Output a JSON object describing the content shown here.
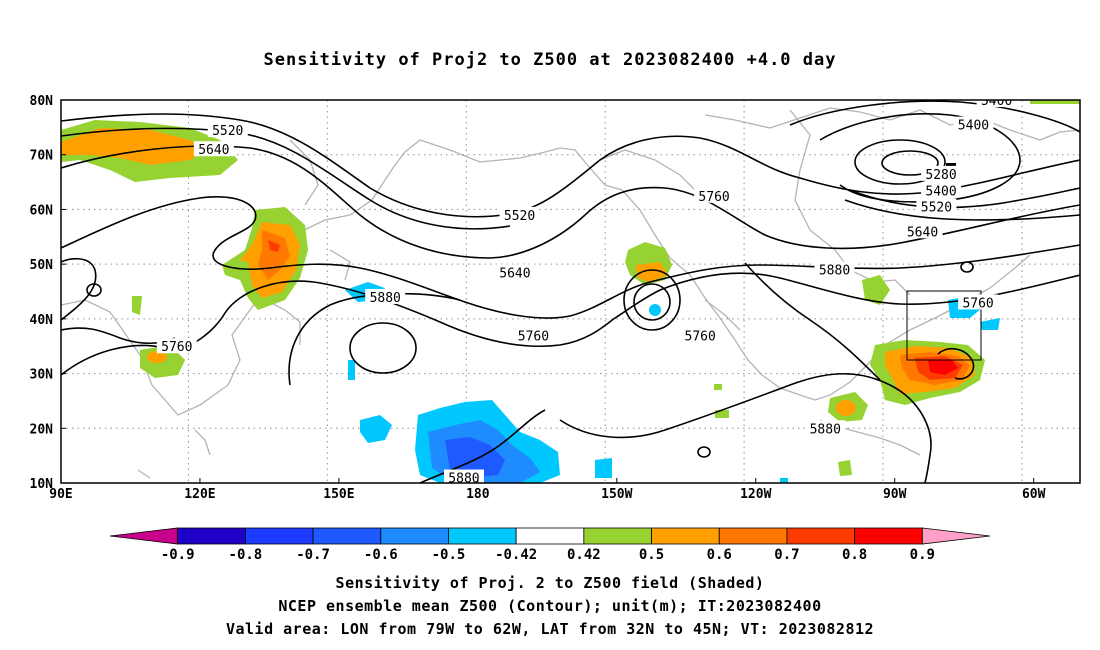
{
  "title": "Sensitivity of Proj2 to Z500 at 2023082400 +4.0 day",
  "footer": {
    "line1": "Sensitivity of Proj. 2 to Z500 field (Shaded)",
    "line2": "NCEP ensemble mean Z500 (Contour); unit(m); IT:2023082400",
    "line3": "Valid area: LON from 79W to 62W, LAT from 32N to 45N; VT: 2023082812"
  },
  "map": {
    "lon_labels": [
      "90E",
      "120E",
      "150E",
      "180",
      "150W",
      "120W",
      "90W",
      "60W"
    ],
    "lat_labels": [
      "10N",
      "20N",
      "30N",
      "40N",
      "50N",
      "60N",
      "70N",
      "80N"
    ],
    "lon_range": [
      90,
      310
    ],
    "lat_range": [
      10,
      80
    ],
    "valid_area": {
      "lon_from": "79W",
      "lon_to": "62W",
      "lat_from": "32N",
      "lat_to": "45N"
    }
  },
  "contour_labels": [
    {
      "text": "5520",
      "lon": 126,
      "lat": 74.5
    },
    {
      "text": "5640",
      "lon": 123,
      "lat": 71
    },
    {
      "text": "5520",
      "lon": 189,
      "lat": 59
    },
    {
      "text": "5640",
      "lon": 188,
      "lat": 48.5
    },
    {
      "text": "5760",
      "lon": 192,
      "lat": 37
    },
    {
      "text": "5880",
      "lon": 160,
      "lat": 44
    },
    {
      "text": "5760",
      "lon": 115,
      "lat": 35
    },
    {
      "text": "5880",
      "lon": 177,
      "lat": 11
    },
    {
      "text": "5760",
      "lon": 231,
      "lat": 62.5
    },
    {
      "text": "5760",
      "lon": 228,
      "lat": 37
    },
    {
      "text": "5880",
      "lon": 257,
      "lat": 49
    },
    {
      "text": "5880",
      "lon": 255,
      "lat": 20
    },
    {
      "text": "5400",
      "lon": 292,
      "lat": 80
    },
    {
      "text": "5400",
      "lon": 287,
      "lat": 75.5
    },
    {
      "text": "5280",
      "lon": 280,
      "lat": 66.5
    },
    {
      "text": "5400",
      "lon": 280,
      "lat": 63.5
    },
    {
      "text": "5520",
      "lon": 279,
      "lat": 60.5
    },
    {
      "text": "5640",
      "lon": 276,
      "lat": 56
    },
    {
      "text": "5760",
      "lon": 288,
      "lat": 43
    }
  ],
  "colorbar": {
    "colors": [
      "#c8008c",
      "#1e00c8",
      "#1e3cff",
      "#1e5aff",
      "#1e8cff",
      "#00c8ff",
      "#ffffff",
      "#96d232",
      "#ffa000",
      "#ff7800",
      "#ff3c00",
      "#ff0000",
      "#ffa0c8"
    ],
    "labels": [
      "-0.9",
      "-0.8",
      "-0.7",
      "-0.6",
      "-0.5",
      "-0.42",
      "0.42",
      "0.5",
      "0.6",
      "0.7",
      "0.8",
      "0.9"
    ]
  }
}
